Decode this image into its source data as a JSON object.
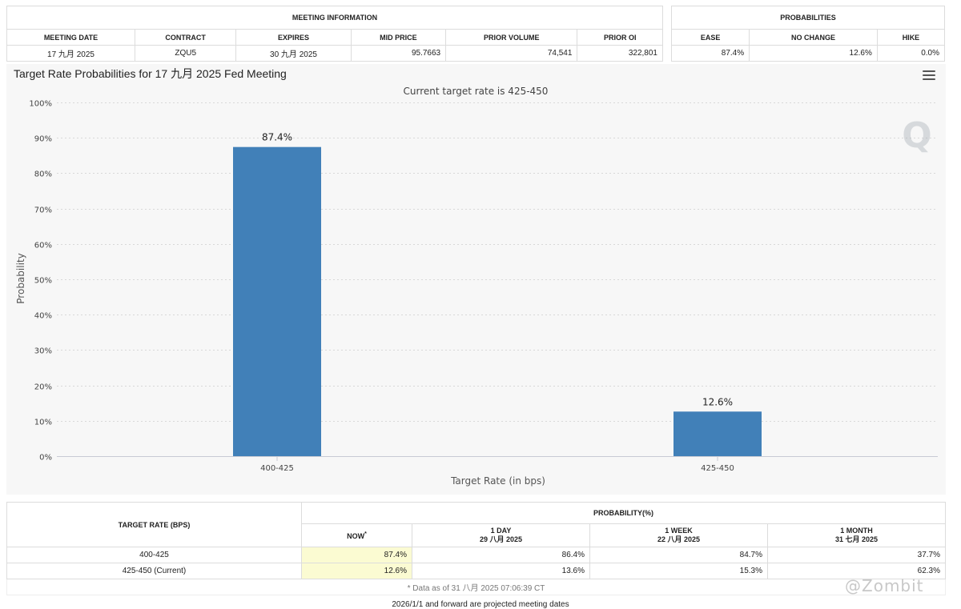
{
  "meeting_info": {
    "title": "MEETING INFORMATION",
    "headers": [
      "MEETING DATE",
      "CONTRACT",
      "EXPIRES",
      "MID PRICE",
      "PRIOR VOLUME",
      "PRIOR OI"
    ],
    "row": [
      "17 九月 2025",
      "ZQU5",
      "30 九月 2025",
      "95.7663",
      "74,541",
      "322,801"
    ]
  },
  "probabilities": {
    "title": "PROBABILITIES",
    "headers": [
      "EASE",
      "NO CHANGE",
      "HIKE"
    ],
    "row": [
      "87.4%",
      "12.6%",
      "0.0%"
    ]
  },
  "chart_data": {
    "type": "bar",
    "title": "Target Rate Probabilities for 17 九月 2025 Fed Meeting",
    "subtitle": "Current target rate is 425-450",
    "xlabel": "Target Rate (in bps)",
    "ylabel": "Probability",
    "categories": [
      "400-425",
      "425-450"
    ],
    "values": [
      87.4,
      12.6
    ],
    "data_labels": [
      "87.4%",
      "12.6%"
    ],
    "ylim": [
      0,
      100
    ],
    "yticks": [
      0,
      10,
      20,
      30,
      40,
      50,
      60,
      70,
      80,
      90,
      100
    ],
    "ytick_labels": [
      "0%",
      "10%",
      "20%",
      "30%",
      "40%",
      "50%",
      "60%",
      "70%",
      "80%",
      "90%",
      "100%"
    ],
    "grid": true,
    "bar_color": "#4180b8"
  },
  "rates_table": {
    "col_title": "TARGET RATE (BPS)",
    "group_title": "PROBABILITY(%)",
    "columns": [
      {
        "label": "NOW",
        "mark": "*",
        "date": ""
      },
      {
        "label": "1 DAY",
        "date": "29 八月 2025"
      },
      {
        "label": "1 WEEK",
        "date": "22 八月 2025"
      },
      {
        "label": "1 MONTH",
        "date": "31 七月 2025"
      }
    ],
    "rows": [
      {
        "rate": "400-425",
        "values": [
          "87.4%",
          "86.4%",
          "84.7%",
          "37.7%"
        ]
      },
      {
        "rate": "425-450 (Current)",
        "values": [
          "12.6%",
          "13.6%",
          "15.3%",
          "62.3%"
        ]
      }
    ],
    "note": "* Data as of 31 八月 2025 07:06:39 CT"
  },
  "footer_note": "2026/1/1 and forward are projected meeting dates",
  "watermark": "@Zombit",
  "colors": {
    "now_highlight": "#fbfbd2",
    "bar": "#4180b8",
    "chart_bg": "#f7f7f7"
  }
}
